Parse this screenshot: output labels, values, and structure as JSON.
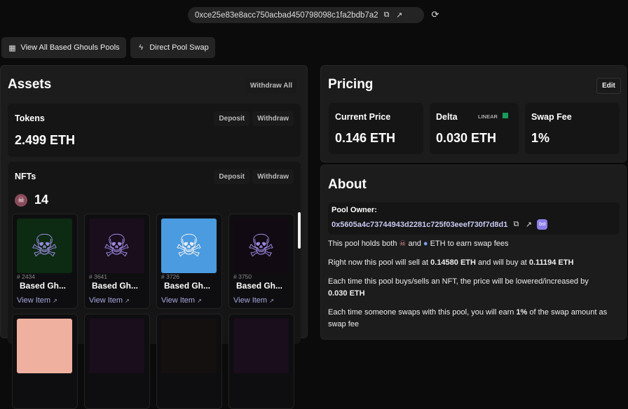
{
  "header": {
    "pool_address": "0xce25e83e8acc750acbad450798098c1fa2bdb7a2"
  },
  "toolbar": {
    "view_all": "View All Based Ghouls Pools",
    "direct_swap": "Direct Pool Swap"
  },
  "assets": {
    "title": "Assets",
    "withdraw_all": "Withdraw All",
    "tokens": {
      "label": "Tokens",
      "deposit": "Deposit",
      "withdraw": "Withdraw",
      "value": "2.499 ETH"
    },
    "nfts": {
      "label": "NFTs",
      "deposit": "Deposit",
      "withdraw": "Withdraw",
      "count": "14",
      "items": [
        {
          "id": "# 2434",
          "name": "Based Gh...",
          "link": "View Item",
          "bg": "#0d2a12"
        },
        {
          "id": "# 3641",
          "name": "Based Gh...",
          "link": "View Item",
          "bg": "#1a0d1c"
        },
        {
          "id": "# 3726",
          "name": "Based Gh...",
          "link": "View Item",
          "bg": "#4a9be0"
        },
        {
          "id": "# 3750",
          "name": "Based Gh...",
          "link": "View Item",
          "bg": "#120a12"
        }
      ]
    }
  },
  "pricing": {
    "title": "Pricing",
    "edit": "Edit",
    "current_price": {
      "label": "Current Price",
      "value": "0.146 ETH"
    },
    "delta": {
      "label": "Delta",
      "curve": "LINEAR",
      "value": "0.030 ETH"
    },
    "swap_fee": {
      "label": "Swap Fee",
      "value": "1%"
    }
  },
  "about": {
    "title": "About",
    "owner_label": "Pool Owner:",
    "owner_address": "0x5605a4c73744943d2281c725f03eeef730f7d8d1",
    "owner_badge": "bst",
    "line1_a": "This pool holds both",
    "line1_b": "and",
    "line1_c": "ETH to earn swap fees",
    "line2_a": "Right now this pool will sell at",
    "sell_price": "0.14580 ETH",
    "line2_b": "and will buy at",
    "buy_price": "0.11194 ETH",
    "line3": "Each time this pool buys/sells an NFT, the price will be lowered/increased by",
    "delta": "0.030 ETH",
    "line4_a": "Each time someone swaps with this pool, you will earn",
    "fee": "1%",
    "line4_b": "of the swap",
    "line4_c": "amount as swap fee"
  }
}
